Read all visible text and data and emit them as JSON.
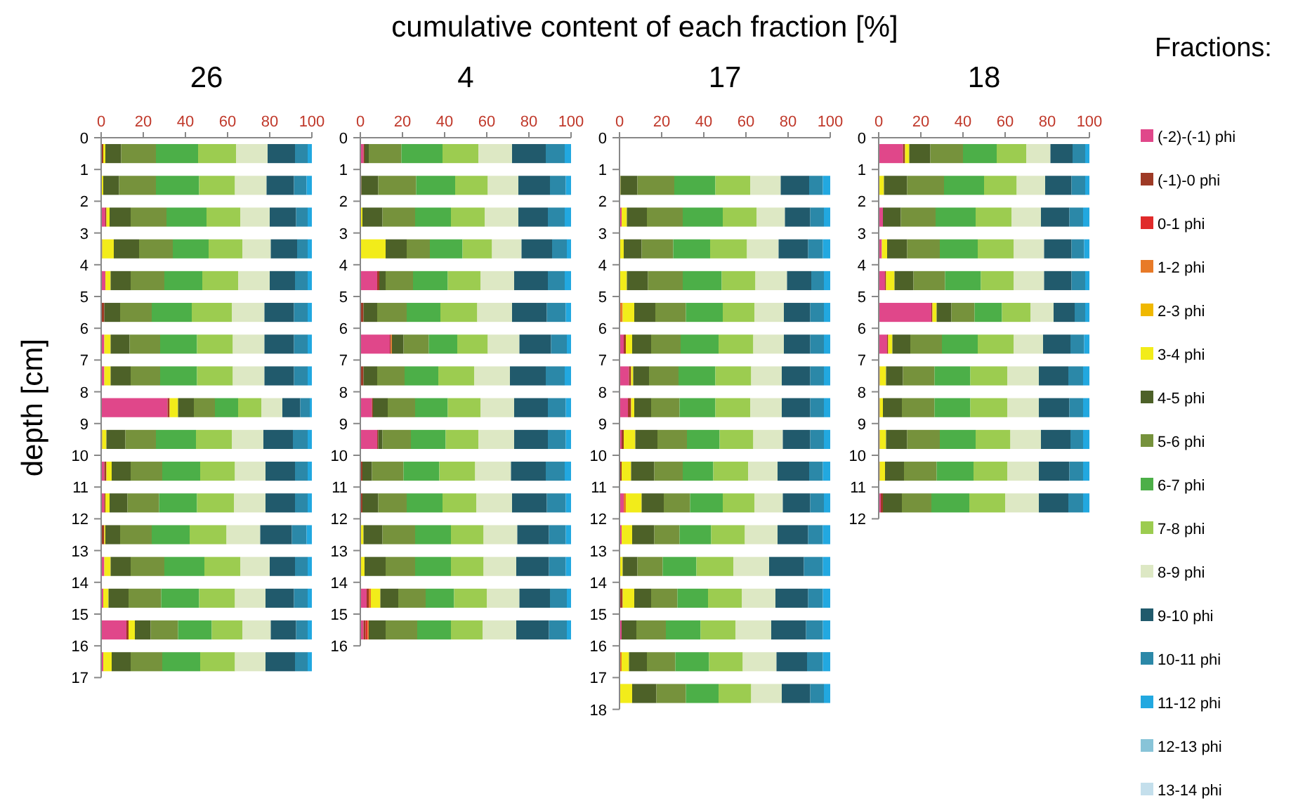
{
  "chart_data": [
    {
      "type": "bar",
      "orientation": "horizontal",
      "stacked": true,
      "title": "26",
      "xlabel": "cumulative content of each fraction [%]",
      "ylabel": "depth [cm]",
      "x": [
        0.5,
        1.5,
        2.5,
        3.5,
        4.5,
        5.5,
        6.5,
        7.5,
        8.5,
        9.5,
        10.5,
        11.5,
        12.5,
        13.5,
        14.5,
        15.5,
        16.5
      ],
      "xlim": [
        0,
        100
      ],
      "xticks": [
        0,
        20,
        40,
        60,
        80,
        100
      ],
      "ylim": [
        17,
        0
      ],
      "yticks": [
        0,
        1,
        2,
        3,
        4,
        5,
        6,
        7,
        8,
        9,
        10,
        11,
        12,
        13,
        14,
        15,
        16,
        17
      ],
      "series": [
        {
          "color": "#e0478a",
          "values": [
            0,
            0,
            2,
            0,
            2,
            0,
            1.5,
            1.5,
            31.5,
            0,
            1.5,
            1.5,
            0,
            1.5,
            1,
            12,
            1
          ]
        },
        {
          "color": "#9e3a26",
          "values": [
            1,
            0,
            0.5,
            0.5,
            0,
            1.5,
            0,
            0,
            1,
            0.5,
            1,
            0.5,
            1.5,
            0,
            0,
            1,
            0
          ]
        },
        {
          "color": "#e02a2a",
          "values": [
            0,
            0,
            0,
            0,
            0,
            0,
            0,
            0,
            0,
            0,
            0,
            0,
            0,
            0,
            0,
            0,
            0
          ]
        },
        {
          "color": "#e87a28",
          "values": [
            0,
            0,
            0,
            0,
            0,
            0,
            0,
            0,
            0,
            0,
            0,
            0,
            0,
            0,
            0,
            0,
            0
          ]
        },
        {
          "color": "#f0b800",
          "values": [
            0,
            0,
            0,
            0,
            0,
            0,
            0,
            0,
            0,
            0,
            0,
            0,
            0,
            0,
            0,
            0,
            0
          ]
        },
        {
          "color": "#f2ec1a",
          "values": [
            1,
            1,
            1.5,
            5.5,
            2.5,
            0,
            3,
            3,
            4,
            2,
            2.5,
            2,
            0.5,
            3,
            2.5,
            3,
            4
          ]
        },
        {
          "color": "#4d6128",
          "values": [
            7.5,
            7.5,
            10,
            12,
            9.5,
            7.5,
            9,
            9.5,
            7.5,
            9,
            9,
            8.5,
            7,
            9.5,
            9.5,
            7.5,
            9
          ]
        },
        {
          "color": "#76923c",
          "values": [
            16.5,
            17.5,
            17,
            16,
            16,
            15,
            14.5,
            14,
            10,
            14.5,
            15,
            15,
            15,
            16,
            15.5,
            13,
            15
          ]
        },
        {
          "color": "#4caf48",
          "values": [
            20,
            20.5,
            19,
            17,
            18,
            19,
            17.5,
            17.5,
            11,
            19,
            18,
            18,
            18,
            19,
            18,
            16,
            18
          ]
        },
        {
          "color": "#9ccc50",
          "values": [
            18,
            17,
            16,
            16,
            17,
            19,
            17,
            17,
            11,
            17,
            16.5,
            17.5,
            17.5,
            17,
            17,
            14.5,
            16.5
          ]
        },
        {
          "color": "#dde8c4",
          "values": [
            15,
            15,
            14,
            13.5,
            15,
            15.5,
            15,
            15,
            10,
            15,
            14.5,
            15,
            16,
            14,
            14.5,
            13.5,
            14.5
          ]
        },
        {
          "color": "#215a6c",
          "values": [
            13,
            13,
            12.5,
            12.5,
            12,
            14,
            14,
            14,
            8.5,
            14,
            14,
            14,
            15,
            12,
            13.5,
            12,
            14
          ]
        },
        {
          "color": "#2b88a8",
          "values": [
            6,
            6,
            5.5,
            5,
            6,
            6.5,
            6.5,
            6.5,
            4.5,
            7,
            6,
            6,
            7,
            6,
            6.5,
            5.5,
            6
          ]
        },
        {
          "color": "#22a8e0",
          "values": [
            2,
            2.5,
            2,
            2,
            2,
            2,
            2,
            2,
            1,
            2,
            2,
            2,
            2.5,
            2,
            2,
            2,
            2
          ]
        },
        {
          "color": "#88c4d8",
          "values": [
            0,
            0,
            0,
            0,
            0,
            0,
            0,
            0,
            0,
            0,
            0,
            0,
            0,
            0,
            0,
            0,
            0
          ]
        },
        {
          "color": "#c4dfec",
          "values": [
            0,
            0,
            0,
            0,
            0,
            0,
            0,
            0,
            0,
            0,
            0,
            0,
            0,
            0,
            0,
            0,
            0
          ]
        }
      ]
    },
    {
      "type": "bar",
      "orientation": "horizontal",
      "stacked": true,
      "title": "4",
      "x": [
        0.5,
        1.5,
        2.5,
        3.5,
        4.5,
        5.5,
        6.5,
        7.5,
        8.5,
        9.5,
        10.5,
        11.5,
        12.5,
        13.5,
        14.5,
        15.5
      ],
      "xlim": [
        0,
        100
      ],
      "xticks": [
        0,
        20,
        40,
        60,
        80,
        100
      ],
      "ylim": [
        16,
        0
      ],
      "yticks": [
        0,
        1,
        2,
        3,
        4,
        5,
        6,
        7,
        8,
        9,
        10,
        11,
        12,
        13,
        14,
        15,
        16
      ],
      "series": [
        {
          "color": "#e0478a",
          "values": [
            1.5,
            0,
            0,
            0,
            8,
            0,
            14,
            0,
            5.5,
            8,
            0,
            0,
            0,
            0,
            3,
            1.5
          ]
        },
        {
          "color": "#9e3a26",
          "values": [
            0.5,
            0.5,
            0,
            0,
            1,
            1.5,
            0.5,
            1.5,
            0.5,
            0.5,
            1,
            1,
            0,
            0,
            1,
            1
          ]
        },
        {
          "color": "#e02a2a",
          "values": [
            0,
            0,
            0,
            0,
            0,
            0,
            0,
            0,
            0,
            0,
            0,
            0,
            0,
            0,
            0,
            1
          ]
        },
        {
          "color": "#e87a28",
          "values": [
            0,
            0,
            0,
            0,
            0,
            0,
            0.5,
            0,
            0,
            0,
            0,
            0,
            0,
            0,
            1,
            0.5
          ]
        },
        {
          "color": "#f0b800",
          "values": [
            0,
            0,
            0,
            0,
            0,
            0,
            0,
            0,
            0,
            0,
            0,
            0,
            0,
            0,
            0,
            0
          ]
        },
        {
          "color": "#f2ec1a",
          "values": [
            0,
            0,
            1,
            12,
            0,
            0,
            0,
            0,
            0,
            0,
            0,
            0,
            1.5,
            2,
            4.5,
            0
          ]
        },
        {
          "color": "#4d6128",
          "values": [
            2,
            8,
            9.5,
            10,
            3,
            6.5,
            5.5,
            6.5,
            7,
            2,
            4.5,
            7.5,
            9,
            10,
            8.5,
            8
          ]
        },
        {
          "color": "#76923c",
          "values": [
            15.5,
            18,
            15.5,
            11,
            13,
            14,
            12,
            13,
            13,
            13.5,
            15,
            13.5,
            15.5,
            14,
            13,
            15
          ]
        },
        {
          "color": "#4caf48",
          "values": [
            19.5,
            18.5,
            17,
            15.5,
            16.5,
            16,
            13.5,
            16,
            15.5,
            16.5,
            17,
            17,
            17,
            17,
            13.5,
            16
          ]
        },
        {
          "color": "#9ccc50",
          "values": [
            17,
            15.5,
            16,
            14,
            15.5,
            17.5,
            14.5,
            17,
            15.5,
            15.5,
            17,
            16,
            15.5,
            15.5,
            15.5,
            15
          ]
        },
        {
          "color": "#dde8c4",
          "values": [
            16,
            14.5,
            16,
            14,
            16,
            16.5,
            15,
            17,
            16,
            17,
            17,
            17,
            16,
            15.5,
            15.5,
            16
          ]
        },
        {
          "color": "#215a6c",
          "values": [
            16,
            15,
            14,
            14.5,
            16,
            16.5,
            15,
            17,
            16,
            16,
            16.5,
            16.5,
            15,
            15.5,
            14.5,
            15.5
          ]
        },
        {
          "color": "#2b88a8",
          "values": [
            9,
            7.5,
            8,
            7,
            8,
            9,
            7.5,
            9,
            8.5,
            8.5,
            9,
            9,
            8,
            8,
            8,
            8.5
          ]
        },
        {
          "color": "#22a8e0",
          "values": [
            3,
            2.5,
            3,
            2,
            3,
            2.5,
            2,
            3,
            2.5,
            2.5,
            3,
            2.5,
            2.5,
            2.5,
            2,
            2
          ]
        },
        {
          "color": "#88c4d8",
          "values": [
            0,
            0,
            0,
            0,
            0,
            0,
            0,
            0,
            0,
            0,
            0,
            0,
            0,
            0,
            0,
            0
          ]
        },
        {
          "color": "#c4dfec",
          "values": [
            0,
            0,
            0,
            0,
            0,
            0,
            0,
            0,
            0,
            0,
            0,
            0,
            0,
            0,
            0,
            0
          ]
        }
      ]
    },
    {
      "type": "bar",
      "orientation": "horizontal",
      "stacked": true,
      "title": "17",
      "x": [
        1.5,
        2.5,
        3.5,
        4.5,
        5.5,
        6.5,
        7.5,
        8.5,
        9.5,
        10.5,
        11.5,
        12.5,
        13.5,
        14.5,
        15.5,
        16.5,
        17.5
      ],
      "xlim": [
        0,
        100
      ],
      "xticks": [
        0,
        20,
        40,
        60,
        80,
        100
      ],
      "ylim": [
        18,
        0
      ],
      "yticks": [
        0,
        1,
        2,
        3,
        4,
        5,
        6,
        7,
        8,
        9,
        10,
        11,
        12,
        13,
        14,
        15,
        16,
        17,
        18
      ],
      "series": [
        {
          "color": "#e0478a",
          "values": [
            0,
            1,
            0,
            0,
            0,
            2,
            4.5,
            4,
            1,
            0,
            2,
            1,
            0,
            0,
            1,
            0,
            0
          ]
        },
        {
          "color": "#9e3a26",
          "values": [
            0,
            0,
            0,
            0,
            0,
            1,
            1,
            1.5,
            1,
            1,
            0,
            0,
            0,
            1.5,
            0,
            0,
            0
          ]
        },
        {
          "color": "#e02a2a",
          "values": [
            0,
            0,
            0,
            0,
            0,
            0,
            0,
            0,
            0,
            0,
            0,
            0,
            0,
            0,
            0,
            0,
            0
          ]
        },
        {
          "color": "#e87a28",
          "values": [
            0,
            0,
            0,
            0,
            1.5,
            0,
            0,
            0,
            0,
            0,
            1,
            0,
            0,
            0,
            0,
            1,
            0
          ]
        },
        {
          "color": "#f0b800",
          "values": [
            0,
            0,
            0,
            0,
            0,
            0,
            0,
            0,
            0,
            0,
            0,
            0,
            0,
            0,
            0,
            0,
            0
          ]
        },
        {
          "color": "#f2ec1a",
          "values": [
            0.5,
            2.5,
            2,
            3.5,
            5.5,
            3,
            1,
            1.5,
            5.5,
            4.5,
            7.5,
            5,
            1.5,
            5.5,
            0,
            3.5,
            6
          ]
        },
        {
          "color": "#4d6128",
          "values": [
            8,
            9.5,
            8.5,
            10,
            10,
            9,
            7.5,
            8,
            10.5,
            11,
            10.5,
            10.5,
            7,
            8,
            7,
            8.5,
            11.5
          ]
        },
        {
          "color": "#76923c",
          "values": [
            17.5,
            17,
            15,
            16.5,
            14.5,
            14,
            14,
            13.5,
            14,
            13.5,
            12.5,
            12,
            12,
            12.5,
            14,
            13.5,
            14
          ]
        },
        {
          "color": "#4caf48",
          "values": [
            19.5,
            19,
            17.5,
            18.5,
            17.5,
            18,
            17.5,
            17,
            15.5,
            14.5,
            15.5,
            15,
            16,
            14.5,
            16.5,
            16,
            15.5
          ]
        },
        {
          "color": "#9ccc50",
          "values": [
            16.5,
            16,
            17.5,
            16,
            15,
            16.5,
            17,
            16.5,
            16,
            16.5,
            15,
            16,
            17.5,
            16,
            16.5,
            16,
            15.5
          ]
        },
        {
          "color": "#dde8c4",
          "values": [
            14.5,
            13.5,
            15,
            15,
            14,
            14.5,
            14.5,
            15,
            14,
            14,
            13.5,
            15.5,
            17,
            16,
            17,
            16,
            14.5
          ]
        },
        {
          "color": "#215a6c",
          "values": [
            13.5,
            12,
            14,
            11.5,
            12.5,
            12.5,
            13.5,
            13.5,
            13,
            15,
            13,
            14.5,
            16.5,
            15.5,
            16.5,
            14.5,
            13.5
          ]
        },
        {
          "color": "#2b88a8",
          "values": [
            6.5,
            6.5,
            7,
            6,
            6.5,
            6.5,
            6.5,
            6.5,
            6.5,
            6.5,
            6.5,
            7,
            9,
            7,
            8,
            7.5,
            6.5
          ]
        },
        {
          "color": "#22a8e0",
          "values": [
            3.5,
            3,
            3.5,
            3,
            3,
            3,
            3,
            3,
            3,
            3.5,
            3,
            3.5,
            3.5,
            3.5,
            3.5,
            3.5,
            3
          ]
        },
        {
          "color": "#88c4d8",
          "values": [
            0,
            0,
            0,
            0,
            0,
            0,
            0,
            0,
            0,
            0,
            0,
            0,
            0,
            0,
            0,
            0,
            0
          ]
        },
        {
          "color": "#c4dfec",
          "values": [
            0,
            0,
            0,
            0,
            0,
            0,
            0,
            0,
            0,
            0,
            0,
            0,
            0,
            0,
            0,
            0,
            0
          ]
        }
      ]
    },
    {
      "type": "bar",
      "orientation": "horizontal",
      "stacked": true,
      "title": "18",
      "legend": "right",
      "legend_title": "Fractions:",
      "x": [
        0.5,
        1.5,
        2.5,
        3.5,
        4.5,
        5.5,
        6.5,
        7.5,
        8.5,
        9.5,
        10.5,
        11.5
      ],
      "xlim": [
        0,
        100
      ],
      "xticks": [
        0,
        20,
        40,
        60,
        80,
        100
      ],
      "ylim": [
        12,
        0
      ],
      "yticks": [
        0,
        1,
        2,
        3,
        4,
        5,
        6,
        7,
        8,
        9,
        10,
        11,
        12
      ],
      "series": [
        {
          "name": "(-2)-(-1) phi",
          "color": "#e0478a",
          "values": [
            11.5,
            0,
            2,
            1.5,
            3,
            25,
            4,
            0,
            0,
            0,
            0,
            1
          ]
        },
        {
          "name": "(-1)-0 phi",
          "color": "#9e3a26",
          "values": [
            1,
            0,
            0,
            0,
            0.5,
            0.5,
            0.5,
            0.5,
            0.5,
            0.5,
            0.5,
            1
          ]
        },
        {
          "name": "0-1 phi",
          "color": "#e02a2a",
          "values": [
            0,
            0,
            0,
            0,
            0,
            0,
            0,
            0,
            0,
            0,
            0,
            0
          ]
        },
        {
          "name": "1-2 phi",
          "color": "#e87a28",
          "values": [
            0,
            0,
            0,
            0,
            0,
            0,
            0,
            0,
            0,
            0,
            0,
            0
          ]
        },
        {
          "name": "2-3 phi",
          "color": "#f0b800",
          "values": [
            0,
            0,
            0,
            0,
            0,
            0,
            0,
            0,
            0,
            0,
            0,
            0
          ]
        },
        {
          "name": "3-4 phi",
          "color": "#f2ec1a",
          "values": [
            2,
            2.5,
            0,
            2.5,
            4,
            2,
            2,
            3,
            1.5,
            3,
            2.5,
            0
          ]
        },
        {
          "name": "4-5 phi",
          "color": "#4d6128",
          "values": [
            10,
            11,
            8.5,
            9.5,
            9,
            7,
            8.5,
            8,
            9,
            10,
            9,
            9
          ]
        },
        {
          "name": "5-6 phi",
          "color": "#76923c",
          "values": [
            15.5,
            17.5,
            16.5,
            15.5,
            15,
            11,
            15,
            15,
            15.5,
            15.5,
            15.5,
            14
          ]
        },
        {
          "name": "6-7 phi",
          "color": "#4caf48",
          "values": [
            16,
            19,
            19,
            18,
            17,
            13,
            17,
            17,
            17,
            17,
            17.5,
            18
          ]
        },
        {
          "name": "7-8 phi",
          "color": "#9ccc50",
          "values": [
            14,
            15.5,
            17,
            17,
            15.5,
            13.5,
            17,
            17.5,
            17.5,
            16.5,
            16,
            17
          ]
        },
        {
          "name": "8-9 phi",
          "color": "#dde8c4",
          "values": [
            11.5,
            13.5,
            14,
            14.5,
            14.5,
            11,
            14,
            15,
            15,
            14.5,
            15,
            16
          ]
        },
        {
          "name": "9-10 phi",
          "color": "#215a6c",
          "values": [
            10.5,
            12.5,
            13.5,
            13,
            13,
            10,
            13,
            14,
            14.5,
            14,
            14.5,
            14
          ]
        },
        {
          "name": "10-11 phi",
          "color": "#2b88a8",
          "values": [
            6,
            6.5,
            6.5,
            6,
            6.5,
            5,
            6.5,
            7,
            6.5,
            6,
            6.5,
            7
          ]
        },
        {
          "name": "11-12 phi",
          "color": "#22a8e0",
          "values": [
            2,
            2,
            3,
            2.5,
            2,
            2,
            2.5,
            3,
            3,
            3,
            3,
            3
          ]
        },
        {
          "name": "12-13 phi",
          "color": "#88c4d8",
          "values": [
            0,
            0,
            0,
            0,
            0,
            0,
            0,
            0,
            0,
            0,
            0,
            0
          ]
        },
        {
          "name": "13-14 phi",
          "color": "#c4dfec",
          "values": [
            0,
            0,
            0,
            0,
            0,
            0,
            0,
            0,
            0,
            0,
            0,
            0
          ]
        }
      ]
    }
  ]
}
